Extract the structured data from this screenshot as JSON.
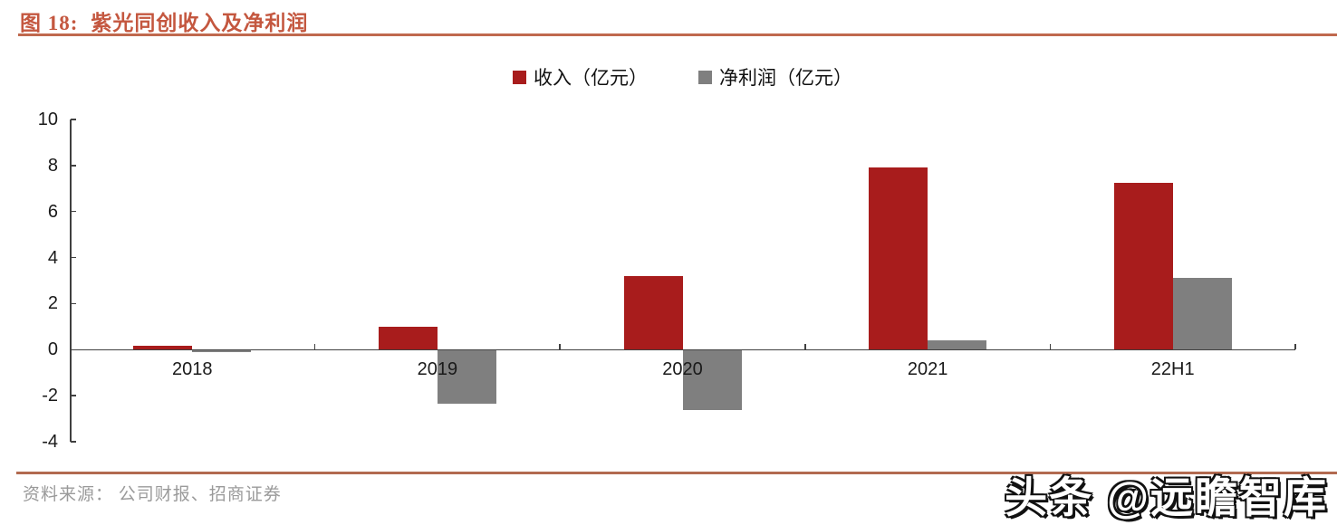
{
  "header": {
    "figure_label": "图 18:",
    "title": "紫光同创收入及净利润"
  },
  "legend": [
    {
      "label": "收入（亿元）",
      "color": "#A81C1C",
      "key": "revenue"
    },
    {
      "label": "净利润（亿元）",
      "color": "#7F7F7F",
      "key": "net-profit"
    }
  ],
  "chart_data": {
    "type": "bar",
    "title": "图 18: 紫光同创收入及净利润",
    "categories": [
      "2018",
      "2019",
      "2020",
      "2021",
      "22H1"
    ],
    "series": [
      {
        "name": "收入（亿元）",
        "color": "#A81C1C",
        "values": [
          0.15,
          1.0,
          3.2,
          7.9,
          7.25
        ]
      },
      {
        "name": "净利润（亿元）",
        "color": "#7F7F7F",
        "values": [
          -0.08,
          -2.3,
          -2.6,
          0.4,
          3.1
        ]
      }
    ],
    "xlabel": "",
    "ylabel": "",
    "ylim": [
      -4,
      10
    ],
    "y_ticks": [
      10,
      8,
      6,
      4,
      2,
      0,
      -2,
      -4
    ],
    "grid": false,
    "legend_position": "top-center"
  },
  "footer": {
    "source": "资料来源：  公司财报、招商证券",
    "watermark": "头条 @远瞻智库"
  },
  "colors": {
    "title_text": "#C4573F",
    "rule_top": "#C0694E",
    "rule_bottom": "#B26A50",
    "axis": "#404040",
    "bar_revenue": "#A81C1C",
    "bar_net_profit": "#7F7F7F"
  }
}
